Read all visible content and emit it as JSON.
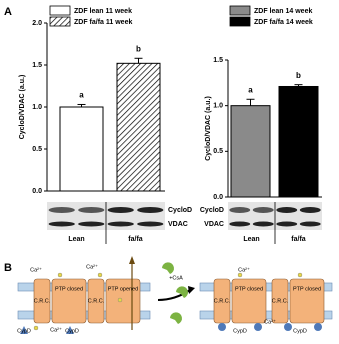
{
  "panels": [
    "A",
    "B"
  ],
  "chart_data": [
    {
      "type": "bar",
      "y_label": "CycloD/VDAC (a.u.)",
      "ylim": [
        0,
        2
      ],
      "yticks": [
        {
          "value": 0,
          "label": "0.0"
        },
        0.5,
        {
          "value": 1,
          "label": "1.0"
        },
        1.5,
        {
          "value": 2,
          "label": "2.0"
        }
      ],
      "series": [
        {
          "name": "ZDF lean 11 week",
          "color": "#ffffff",
          "hatch": false,
          "values": [
            1.0
          ],
          "errors": [
            0.03
          ],
          "annotation": "a"
        },
        {
          "name": "ZDF fa/fa 11 week",
          "color": "#ffffff",
          "hatch": true,
          "values": [
            1.52
          ],
          "errors": [
            0.06
          ],
          "annotation": "b"
        }
      ],
      "blot_rows": [
        "CycloD",
        "VDAC"
      ],
      "blot_groups": [
        "Lean",
        "fa/fa"
      ]
    },
    {
      "type": "bar",
      "y_label": "CycloD/VDAC (a.u.)",
      "ylim": [
        0,
        1.5
      ],
      "yticks": [
        {
          "value": 0,
          "label": "0.0"
        },
        0.5,
        {
          "value": 1,
          "label": "1.0"
        },
        1.5
      ],
      "series": [
        {
          "name": "ZDF lean 14 week",
          "color": "#8a8a8a",
          "hatch": false,
          "values": [
            1.0
          ],
          "errors": [
            0.07
          ],
          "annotation": "a"
        },
        {
          "name": "ZDF fa/fa 14 week",
          "color": "#000000",
          "hatch": false,
          "values": [
            1.21
          ],
          "errors": [
            0.02
          ],
          "annotation": "b"
        }
      ],
      "blot_rows": [
        "CycloD",
        "VDAC"
      ],
      "blot_groups": [
        "Lean",
        "fa/fa"
      ]
    }
  ],
  "diagram": {
    "labels": [
      "Ca²⁺",
      "Ca²⁺",
      "PTP closed",
      "PTP opened",
      "C.R.C.",
      "C.R.C.",
      "CypD",
      "CypD",
      "Ca²⁺",
      "+CsA",
      "PTP closed",
      "PTP closed",
      "C.R.C.",
      "C.R.C.",
      "Ca²⁺",
      "CypD",
      "CypD",
      "Ca²⁺"
    ]
  }
}
